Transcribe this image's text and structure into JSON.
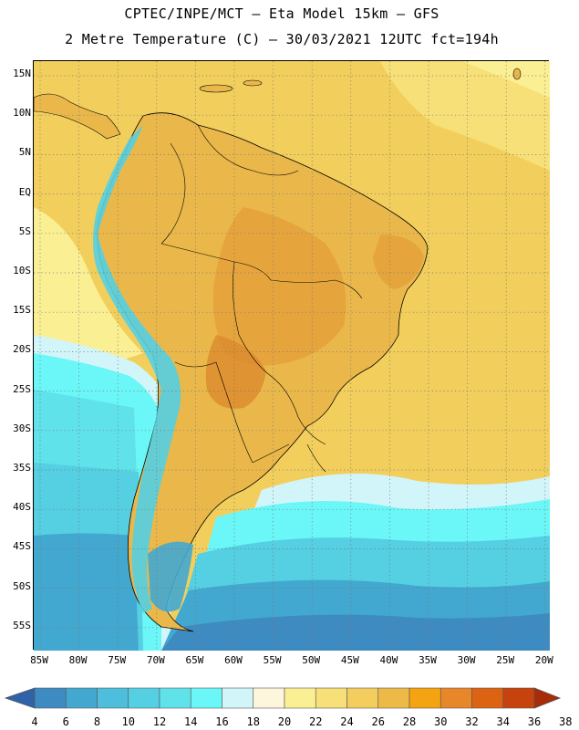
{
  "header": {
    "title_line1": "CPTEC/INPE/MCT –  Eta Model 15km – GFS",
    "title_line2": "2 Metre Temperature (C) – 30/03/2021 12UTC fct=194h"
  },
  "map": {
    "lat_labels": [
      "15N",
      "10N",
      "5N",
      "EQ",
      "5S",
      "10S",
      "15S",
      "20S",
      "25S",
      "30S",
      "35S",
      "40S",
      "45S",
      "50S",
      "55S"
    ],
    "lon_labels": [
      "85W",
      "80W",
      "75W",
      "70W",
      "65W",
      "60W",
      "55W",
      "50W",
      "45W",
      "40W",
      "35W",
      "30W",
      "25W",
      "20W"
    ],
    "ocean_color": "#f2cf5c",
    "land_color": "#eab84a",
    "hot_color": "#e5a13a",
    "grid_color": "#777777"
  },
  "colorbar": {
    "labels": [
      "4",
      "6",
      "8",
      "10",
      "12",
      "14",
      "16",
      "18",
      "20",
      "22",
      "24",
      "26",
      "28",
      "30",
      "32",
      "34",
      "36",
      "38"
    ],
    "colors": [
      "#2f62a8",
      "#3e8bc2",
      "#42a8cf",
      "#4dbedb",
      "#55cfe2",
      "#5fe2ea",
      "#6bf7f7",
      "#d2f5fa",
      "#fdf6dc",
      "#fbef94",
      "#f7e078",
      "#f3ce5e",
      "#edba48",
      "#f3a410",
      "#e8862a",
      "#dc6312",
      "#c6430e",
      "#a82c08"
    ]
  }
}
